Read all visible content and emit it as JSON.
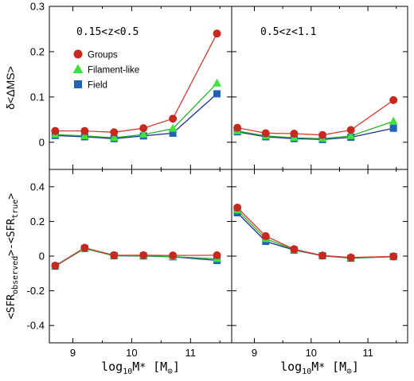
{
  "chart_data": {
    "type": "line",
    "xlabel": "log10M* [M⊙]",
    "x_ticks": [
      "9",
      "10",
      "11"
    ],
    "xlim": [
      8.6,
      11.7
    ],
    "top_row": {
      "ylabel": "δ<ΔMS>",
      "ylim": [
        -0.06,
        0.3
      ],
      "y_ticks": [
        "0",
        "0.1",
        "0.2",
        "0.3"
      ]
    },
    "bottom_row": {
      "ylabel": "<SFRobserved>-<SFRtrue>",
      "ylim": [
        -0.5,
        0.5
      ],
      "y_ticks": [
        "-0.4",
        "-0.2",
        "0",
        "0.2",
        "0.4"
      ]
    },
    "legend": {
      "placement": "upper-left of top-left panel",
      "entries": [
        "Groups",
        "Filament-like",
        "Field"
      ]
    },
    "series_styles": [
      {
        "name": "Groups",
        "marker": "circle",
        "marker_color": "#c8281e",
        "line_color": "#d23b2f"
      },
      {
        "name": "Filament-like",
        "marker": "triangle",
        "marker_color": "#3fe23b",
        "line_color": "#27b428"
      },
      {
        "name": "Field",
        "marker": "square",
        "marker_color": "#1f62b8",
        "line_color": "#1b2f8f"
      }
    ],
    "panels": [
      {
        "row": "top",
        "col": 0,
        "annotation": "0.15<z<0.5",
        "x": [
          8.7,
          9.2,
          9.7,
          10.2,
          10.7,
          11.45
        ],
        "series": [
          {
            "name": "Groups",
            "values": [
              0.025,
              0.025,
              0.022,
              0.031,
              0.052,
              0.24
            ]
          },
          {
            "name": "Filament-like",
            "values": [
              0.017,
              0.014,
              0.01,
              0.017,
              0.03,
              0.13
            ]
          },
          {
            "name": "Field",
            "values": [
              0.015,
              0.012,
              0.008,
              0.014,
              0.02,
              0.107
            ]
          }
        ]
      },
      {
        "row": "top",
        "col": 1,
        "annotation": "0.5<z<1.1",
        "x": [
          8.7,
          9.2,
          9.7,
          10.2,
          10.7,
          11.45
        ],
        "series": [
          {
            "name": "Groups",
            "values": [
              0.032,
              0.02,
              0.019,
              0.016,
              0.027,
              0.093
            ]
          },
          {
            "name": "Filament-like",
            "values": [
              0.025,
              0.014,
              0.01,
              0.008,
              0.014,
              0.046
            ]
          },
          {
            "name": "Field",
            "values": [
              0.023,
              0.012,
              0.008,
              0.006,
              0.011,
              0.031
            ]
          }
        ]
      },
      {
        "row": "bottom",
        "col": 0,
        "annotation": "",
        "x": [
          8.7,
          9.2,
          9.7,
          10.2,
          10.7,
          11.45
        ],
        "series": [
          {
            "name": "Groups",
            "values": [
              -0.055,
              0.048,
              0.005,
              0.005,
              0.004,
              0.005
            ]
          },
          {
            "name": "Filament-like",
            "values": [
              -0.057,
              0.045,
              0.003,
              0.002,
              -0.003,
              -0.015
            ]
          },
          {
            "name": "Field",
            "values": [
              -0.058,
              0.044,
              0.002,
              0.001,
              -0.004,
              -0.025
            ]
          }
        ]
      },
      {
        "row": "bottom",
        "col": 1,
        "annotation": "",
        "x": [
          8.7,
          9.2,
          9.7,
          10.2,
          10.7,
          11.45
        ],
        "series": [
          {
            "name": "Groups",
            "values": [
              0.28,
              0.115,
              0.04,
              0.003,
              -0.008,
              -0.002
            ]
          },
          {
            "name": "Filament-like",
            "values": [
              0.265,
              0.1,
              0.037,
              0.003,
              -0.01,
              -0.003
            ]
          },
          {
            "name": "Field",
            "values": [
              0.25,
              0.085,
              0.035,
              0.002,
              -0.012,
              -0.003
            ]
          }
        ]
      }
    ]
  }
}
